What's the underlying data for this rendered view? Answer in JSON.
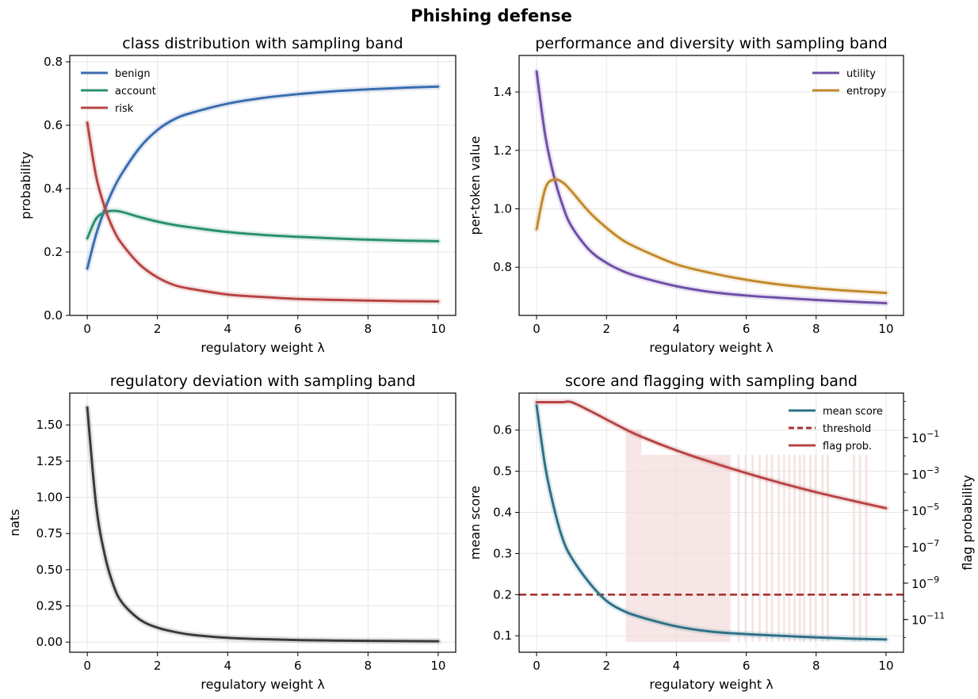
{
  "figure": {
    "title": "Phishing defense"
  },
  "chart_data": [
    {
      "id": "p1",
      "type": "line",
      "title": "class distribution with sampling band",
      "xlabel": "regulatory weight λ",
      "ylabel": "probability",
      "xlim": [
        -0.5,
        10.5
      ],
      "ylim": [
        0.0,
        0.82
      ],
      "xticks": [
        0,
        2,
        4,
        6,
        8,
        10
      ],
      "xtick_labels": [
        "0",
        "2",
        "4",
        "6",
        "8",
        "10"
      ],
      "yticks": [
        0.0,
        0.2,
        0.4,
        0.6,
        0.8
      ],
      "ytick_labels": [
        "0.0",
        "0.2",
        "0.4",
        "0.6",
        "0.8"
      ],
      "grid": true,
      "legend": "top-left",
      "x": [
        0,
        0.25,
        0.5,
        0.75,
        1,
        1.5,
        2,
        2.5,
        3,
        4,
        5,
        6,
        7,
        8,
        9,
        10
      ],
      "series": [
        {
          "name": "benign",
          "color": "#3a6db0",
          "values": [
            0.148,
            0.255,
            0.335,
            0.4,
            0.45,
            0.53,
            0.585,
            0.62,
            0.64,
            0.668,
            0.686,
            0.698,
            0.707,
            0.713,
            0.718,
            0.722
          ]
        },
        {
          "name": "account",
          "color": "#2a9070",
          "values": [
            0.243,
            0.305,
            0.325,
            0.33,
            0.326,
            0.31,
            0.296,
            0.285,
            0.277,
            0.263,
            0.254,
            0.248,
            0.243,
            0.239,
            0.236,
            0.234
          ]
        },
        {
          "name": "risk",
          "color": "#b84444",
          "values": [
            0.608,
            0.44,
            0.34,
            0.27,
            0.224,
            0.16,
            0.12,
            0.095,
            0.083,
            0.066,
            0.058,
            0.052,
            0.049,
            0.047,
            0.045,
            0.044
          ]
        }
      ]
    },
    {
      "id": "p2",
      "type": "line",
      "title": "performance and diversity with sampling band",
      "xlabel": "regulatory weight λ",
      "ylabel": "per-token value",
      "xlim": [
        -0.5,
        10.5
      ],
      "ylim": [
        0.635,
        1.525
      ],
      "xticks": [
        0,
        2,
        4,
        6,
        8,
        10
      ],
      "xtick_labels": [
        "0",
        "2",
        "4",
        "6",
        "8",
        "10"
      ],
      "yticks": [
        0.8,
        1.0,
        1.2,
        1.4
      ],
      "ytick_labels": [
        "0.8",
        "1.0",
        "1.2",
        "1.4"
      ],
      "grid": true,
      "legend": "top-right",
      "x": [
        0,
        0.25,
        0.5,
        0.75,
        1,
        1.5,
        2,
        2.5,
        3,
        4,
        5,
        6,
        7,
        8,
        9,
        10
      ],
      "series": [
        {
          "name": "utility",
          "color": "#6f4fa8",
          "values": [
            1.47,
            1.25,
            1.11,
            1.01,
            0.94,
            0.86,
            0.815,
            0.785,
            0.765,
            0.735,
            0.715,
            0.703,
            0.695,
            0.688,
            0.682,
            0.677
          ]
        },
        {
          "name": "entropy",
          "color": "#c28a2c",
          "values": [
            0.93,
            1.07,
            1.1,
            1.09,
            1.06,
            0.99,
            0.935,
            0.89,
            0.86,
            0.81,
            0.78,
            0.757,
            0.74,
            0.728,
            0.719,
            0.712
          ]
        }
      ]
    },
    {
      "id": "p3",
      "type": "line",
      "title": "regulatory deviation with sampling band",
      "xlabel": "regulatory weight λ",
      "ylabel": "nats",
      "xlim": [
        -0.5,
        10.5
      ],
      "ylim": [
        -0.07,
        1.72
      ],
      "xticks": [
        0,
        2,
        4,
        6,
        8,
        10
      ],
      "xtick_labels": [
        "0",
        "2",
        "4",
        "6",
        "8",
        "10"
      ],
      "yticks": [
        0.0,
        0.25,
        0.5,
        0.75,
        1.0,
        1.25,
        1.5
      ],
      "ytick_labels": [
        "0.00",
        "0.25",
        "0.50",
        "0.75",
        "1.00",
        "1.25",
        "1.50"
      ],
      "grid": true,
      "x": [
        0,
        0.25,
        0.5,
        0.75,
        1,
        1.5,
        2,
        2.5,
        3,
        4,
        5,
        6,
        7,
        8,
        9,
        10
      ],
      "series": [
        {
          "color": "#3a3a3a",
          "values": [
            1.62,
            0.95,
            0.6,
            0.39,
            0.27,
            0.155,
            0.1,
            0.07,
            0.05,
            0.03,
            0.02,
            0.014,
            0.011,
            0.009,
            0.007,
            0.006
          ]
        }
      ]
    },
    {
      "id": "p4",
      "type": "line",
      "title": "score and flagging with sampling band",
      "xlabel": "regulatory weight λ",
      "ylabel": "mean score",
      "y2label": "flag probability",
      "y2scale": "log",
      "xlim": [
        -0.5,
        10.5
      ],
      "ylim": [
        0.06,
        0.69
      ],
      "y2lim_exp": [
        -12.8,
        1.45
      ],
      "xticks": [
        0,
        2,
        4,
        6,
        8,
        10
      ],
      "xtick_labels": [
        "0",
        "2",
        "4",
        "6",
        "8",
        "10"
      ],
      "yticks": [
        0.1,
        0.2,
        0.3,
        0.4,
        0.5,
        0.6
      ],
      "ytick_labels": [
        "0.1",
        "0.2",
        "0.3",
        "0.4",
        "0.5",
        "0.6"
      ],
      "y2ticks_exp": [
        -1,
        -3,
        -5,
        -7,
        -9,
        -11
      ],
      "grid": true,
      "legend": "top-right",
      "x": [
        0,
        0.25,
        0.5,
        0.75,
        1,
        1.5,
        2,
        2.5,
        3,
        4,
        5,
        6,
        7,
        8,
        9,
        10
      ],
      "series": [
        {
          "name": "mean score",
          "color": "#2e7187",
          "values": [
            0.66,
            0.51,
            0.41,
            0.335,
            0.29,
            0.23,
            0.185,
            0.16,
            0.145,
            0.123,
            0.11,
            0.104,
            0.1,
            0.096,
            0.093,
            0.091
          ]
        },
        {
          "name": "flag prob.",
          "color": "#b84444",
          "axis": "right",
          "y_exp": [
            0.95,
            0.95,
            0.95,
            0.95,
            0.95,
            0.5,
            0.0,
            -0.5,
            -0.95,
            -1.7,
            -2.35,
            -2.95,
            -3.5,
            -4.0,
            -4.45,
            -4.88
          ]
        }
      ],
      "threshold": {
        "name": "threshold",
        "value": 0.2,
        "color": "#a83232"
      }
    }
  ]
}
